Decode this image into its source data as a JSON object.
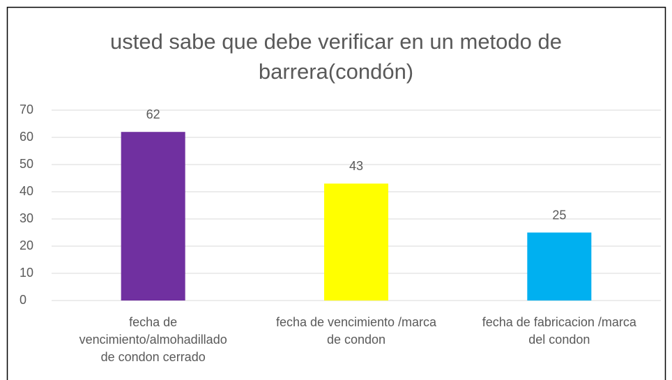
{
  "chart_data": {
    "type": "bar",
    "title": "usted sabe que debe verificar en un metodo de\nbarrera(condón)",
    "categories": [
      "fecha de\nvencimiento/almohadillado\nde condon cerrado",
      "fecha de vencimiento /marca\nde condon",
      "fecha de fabricacion /marca\ndel condon"
    ],
    "values": [
      62,
      43,
      25
    ],
    "colors": [
      "#7030a0",
      "#ffff00",
      "#00b0f0"
    ],
    "ylim": [
      0,
      70
    ],
    "yticks": [
      0,
      10,
      20,
      30,
      40,
      50,
      60,
      70
    ],
    "grid": true,
    "data_labels": true
  }
}
